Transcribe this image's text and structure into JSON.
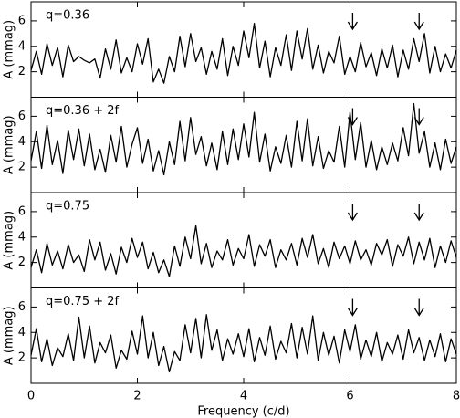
{
  "chart_data": [
    {
      "type": "line",
      "annotation": "q=0.36",
      "ylabel": "A (mmag)",
      "color": "#000000",
      "xlim": [
        0,
        8
      ],
      "xticks": [
        0,
        2,
        4,
        6,
        8
      ],
      "ylim": [
        0,
        7.5
      ],
      "yticks": [
        2,
        4,
        6
      ],
      "arrows": [
        6.05,
        7.3
      ],
      "x": [
        0,
        0.1,
        0.2,
        0.3,
        0.4,
        0.5,
        0.6,
        0.7,
        0.8,
        0.9,
        1,
        1.1,
        1.2,
        1.3,
        1.4,
        1.5,
        1.6,
        1.7,
        1.8,
        1.9,
        2,
        2.1,
        2.2,
        2.3,
        2.4,
        2.5,
        2.6,
        2.7,
        2.8,
        2.9,
        3,
        3.1,
        3.2,
        3.3,
        3.4,
        3.5,
        3.6,
        3.7,
        3.8,
        3.9,
        4,
        4.1,
        4.2,
        4.3,
        4.4,
        4.5,
        4.6,
        4.7,
        4.8,
        4.9,
        5,
        5.1,
        5.2,
        5.3,
        5.4,
        5.5,
        5.6,
        5.7,
        5.8,
        5.9,
        6,
        6.1,
        6.2,
        6.3,
        6.4,
        6.5,
        6.6,
        6.7,
        6.8,
        6.9,
        7,
        7.1,
        7.2,
        7.3,
        7.4,
        7.5,
        7.6,
        7.7,
        7.8,
        7.9,
        8
      ],
      "values": [
        2.1,
        3.6,
        1.8,
        4.2,
        2.5,
        3.9,
        1.6,
        4.1,
        2.8,
        3.2,
        2.9,
        2.7,
        3.0,
        1.5,
        3.8,
        2.2,
        4.5,
        1.9,
        3.1,
        2.0,
        4.2,
        2.6,
        4.6,
        1.2,
        2.2,
        1.1,
        3.2,
        2.0,
        4.8,
        2.4,
        5.0,
        2.8,
        3.9,
        1.8,
        3.6,
        2.2,
        4.6,
        1.7,
        4.0,
        2.5,
        5.2,
        3.1,
        5.8,
        2.3,
        4.4,
        1.6,
        3.9,
        2.5,
        4.9,
        2.1,
        5.2,
        3.0,
        5.4,
        2.2,
        4.1,
        1.9,
        3.6,
        2.7,
        4.8,
        1.8,
        3.2,
        2.0,
        4.3,
        2.4,
        3.5,
        1.7,
        3.8,
        2.3,
        4.1,
        1.6,
        3.7,
        2.2,
        4.6,
        2.8,
        5.0,
        1.9,
        4.0,
        2.0,
        3.4,
        2.3,
        3.7
      ]
    },
    {
      "type": "line",
      "annotation": "q=0.36 + 2f",
      "ylabel": "A (mmag)",
      "color": "#000000",
      "xlim": [
        0,
        8
      ],
      "xticks": [
        0,
        2,
        4,
        6,
        8
      ],
      "ylim": [
        0,
        7.5
      ],
      "yticks": [
        2,
        4,
        6
      ],
      "arrows": [
        6.05,
        7.3
      ],
      "x": [
        0,
        0.1,
        0.2,
        0.3,
        0.4,
        0.5,
        0.6,
        0.7,
        0.8,
        0.9,
        1,
        1.1,
        1.2,
        1.3,
        1.4,
        1.5,
        1.6,
        1.7,
        1.8,
        1.9,
        2,
        2.1,
        2.2,
        2.3,
        2.4,
        2.5,
        2.6,
        2.7,
        2.8,
        2.9,
        3,
        3.1,
        3.2,
        3.3,
        3.4,
        3.5,
        3.6,
        3.7,
        3.8,
        3.9,
        4,
        4.1,
        4.2,
        4.3,
        4.4,
        4.5,
        4.6,
        4.7,
        4.8,
        4.9,
        5,
        5.1,
        5.2,
        5.3,
        5.4,
        5.5,
        5.6,
        5.7,
        5.8,
        5.9,
        6,
        6.1,
        6.2,
        6.3,
        6.4,
        6.5,
        6.6,
        6.7,
        6.8,
        6.9,
        7,
        7.1,
        7.2,
        7.3,
        7.4,
        7.5,
        7.6,
        7.7,
        7.8,
        7.9,
        8
      ],
      "values": [
        2.5,
        4.8,
        1.9,
        5.3,
        2.2,
        4.1,
        1.5,
        4.9,
        2.6,
        5.0,
        2.1,
        4.6,
        1.8,
        3.4,
        1.6,
        4.5,
        2.4,
        5.2,
        2.0,
        3.8,
        5.1,
        2.3,
        4.2,
        1.7,
        3.3,
        1.4,
        4.0,
        2.2,
        5.6,
        2.5,
        5.9,
        3.0,
        4.4,
        2.1,
        3.9,
        1.8,
        4.8,
        2.2,
        5.0,
        2.6,
        5.4,
        2.8,
        6.3,
        2.4,
        4.6,
        1.7,
        3.6,
        2.3,
        4.5,
        2.0,
        5.6,
        2.5,
        5.8,
        2.1,
        4.4,
        1.9,
        3.3,
        2.4,
        5.2,
        2.0,
        6.3,
        2.6,
        5.5,
        2.0,
        4.1,
        1.8,
        3.6,
        2.2,
        3.9,
        2.5,
        5.1,
        2.9,
        7.0,
        3.1,
        4.8,
        2.0,
        3.9,
        1.8,
        4.2,
        2.3,
        3.6
      ]
    },
    {
      "type": "line",
      "annotation": "q=0.75",
      "ylabel": "A (mmag)",
      "color": "#000000",
      "xlim": [
        0,
        8
      ],
      "xticks": [
        0,
        2,
        4,
        6,
        8
      ],
      "ylim": [
        0,
        7.5
      ],
      "yticks": [
        2,
        4,
        6
      ],
      "arrows": [
        6.05,
        7.3
      ],
      "x": [
        0,
        0.1,
        0.2,
        0.3,
        0.4,
        0.5,
        0.6,
        0.7,
        0.8,
        0.9,
        1,
        1.1,
        1.2,
        1.3,
        1.4,
        1.5,
        1.6,
        1.7,
        1.8,
        1.9,
        2,
        2.1,
        2.2,
        2.3,
        2.4,
        2.5,
        2.6,
        2.7,
        2.8,
        2.9,
        3,
        3.1,
        3.2,
        3.3,
        3.4,
        3.5,
        3.6,
        3.7,
        3.8,
        3.9,
        4,
        4.1,
        4.2,
        4.3,
        4.4,
        4.5,
        4.6,
        4.7,
        4.8,
        4.9,
        5,
        5.1,
        5.2,
        5.3,
        5.4,
        5.5,
        5.6,
        5.7,
        5.8,
        5.9,
        6,
        6.1,
        6.2,
        6.3,
        6.4,
        6.5,
        6.6,
        6.7,
        6.8,
        6.9,
        7,
        7.1,
        7.2,
        7.3,
        7.4,
        7.5,
        7.6,
        7.7,
        7.8,
        7.9,
        8
      ],
      "values": [
        1.6,
        3.0,
        1.2,
        3.5,
        1.8,
        2.9,
        1.5,
        3.4,
        2.0,
        2.6,
        1.3,
        3.8,
        2.2,
        3.6,
        1.4,
        2.7,
        1.1,
        3.2,
        2.0,
        3.9,
        2.4,
        3.6,
        1.5,
        2.8,
        1.2,
        2.2,
        0.9,
        3.3,
        1.7,
        4.0,
        2.3,
        4.9,
        1.9,
        3.5,
        1.6,
        2.9,
        2.2,
        3.8,
        1.8,
        3.1,
        2.3,
        4.2,
        1.7,
        3.4,
        2.5,
        3.8,
        1.6,
        3.0,
        2.2,
        3.5,
        1.8,
        3.9,
        2.4,
        4.2,
        1.9,
        3.1,
        1.6,
        3.6,
        2.3,
        3.3,
        1.9,
        3.7,
        2.2,
        3.0,
        1.8,
        3.5,
        2.6,
        3.8,
        1.7,
        3.4,
        2.5,
        4.0,
        1.9,
        3.6,
        2.2,
        3.9,
        1.6,
        3.3,
        2.0,
        3.7,
        2.4
      ]
    },
    {
      "type": "line",
      "annotation": "q=0.75 + 2f",
      "ylabel": "A (mmag)",
      "xlabel": "Frequency (c/d)",
      "color": "#000000",
      "xlim": [
        0,
        8
      ],
      "xticks": [
        0,
        2,
        4,
        6,
        8
      ],
      "ylim": [
        0,
        7.5
      ],
      "yticks": [
        2,
        4,
        6
      ],
      "arrows": [
        6.05,
        7.3
      ],
      "x": [
        0,
        0.1,
        0.2,
        0.3,
        0.4,
        0.5,
        0.6,
        0.7,
        0.8,
        0.9,
        1,
        1.1,
        1.2,
        1.3,
        1.4,
        1.5,
        1.6,
        1.7,
        1.8,
        1.9,
        2,
        2.1,
        2.2,
        2.3,
        2.4,
        2.5,
        2.6,
        2.7,
        2.8,
        2.9,
        3,
        3.1,
        3.2,
        3.3,
        3.4,
        3.5,
        3.6,
        3.7,
        3.8,
        3.9,
        4,
        4.1,
        4.2,
        4.3,
        4.4,
        4.5,
        4.6,
        4.7,
        4.8,
        4.9,
        5,
        5.1,
        5.2,
        5.3,
        5.4,
        5.5,
        5.6,
        5.7,
        5.8,
        5.9,
        6,
        6.1,
        6.2,
        6.3,
        6.4,
        6.5,
        6.6,
        6.7,
        6.8,
        6.9,
        7,
        7.1,
        7.2,
        7.3,
        7.4,
        7.5,
        7.6,
        7.7,
        7.8,
        7.9,
        8
      ],
      "values": [
        2.2,
        4.3,
        1.7,
        3.5,
        1.4,
        2.8,
        2.1,
        3.9,
        1.8,
        5.2,
        2.0,
        4.5,
        1.6,
        3.2,
        2.4,
        3.8,
        1.2,
        2.6,
        1.9,
        4.1,
        2.3,
        5.3,
        2.0,
        4.0,
        1.4,
        2.9,
        0.9,
        2.5,
        1.8,
        4.6,
        2.4,
        5.1,
        2.0,
        5.4,
        2.6,
        4.2,
        1.8,
        3.5,
        2.3,
        3.9,
        2.1,
        4.3,
        1.7,
        3.6,
        2.2,
        4.5,
        1.9,
        3.3,
        2.4,
        4.7,
        2.0,
        4.4,
        2.3,
        5.3,
        1.8,
        4.0,
        2.2,
        3.7,
        1.6,
        4.2,
        2.5,
        4.6,
        1.9,
        3.4,
        2.1,
        4.0,
        1.7,
        3.2,
        2.3,
        3.8,
        1.9,
        4.2,
        2.4,
        3.6,
        1.8,
        3.4,
        2.1,
        3.9,
        1.7,
        3.5,
        2.3
      ]
    }
  ]
}
